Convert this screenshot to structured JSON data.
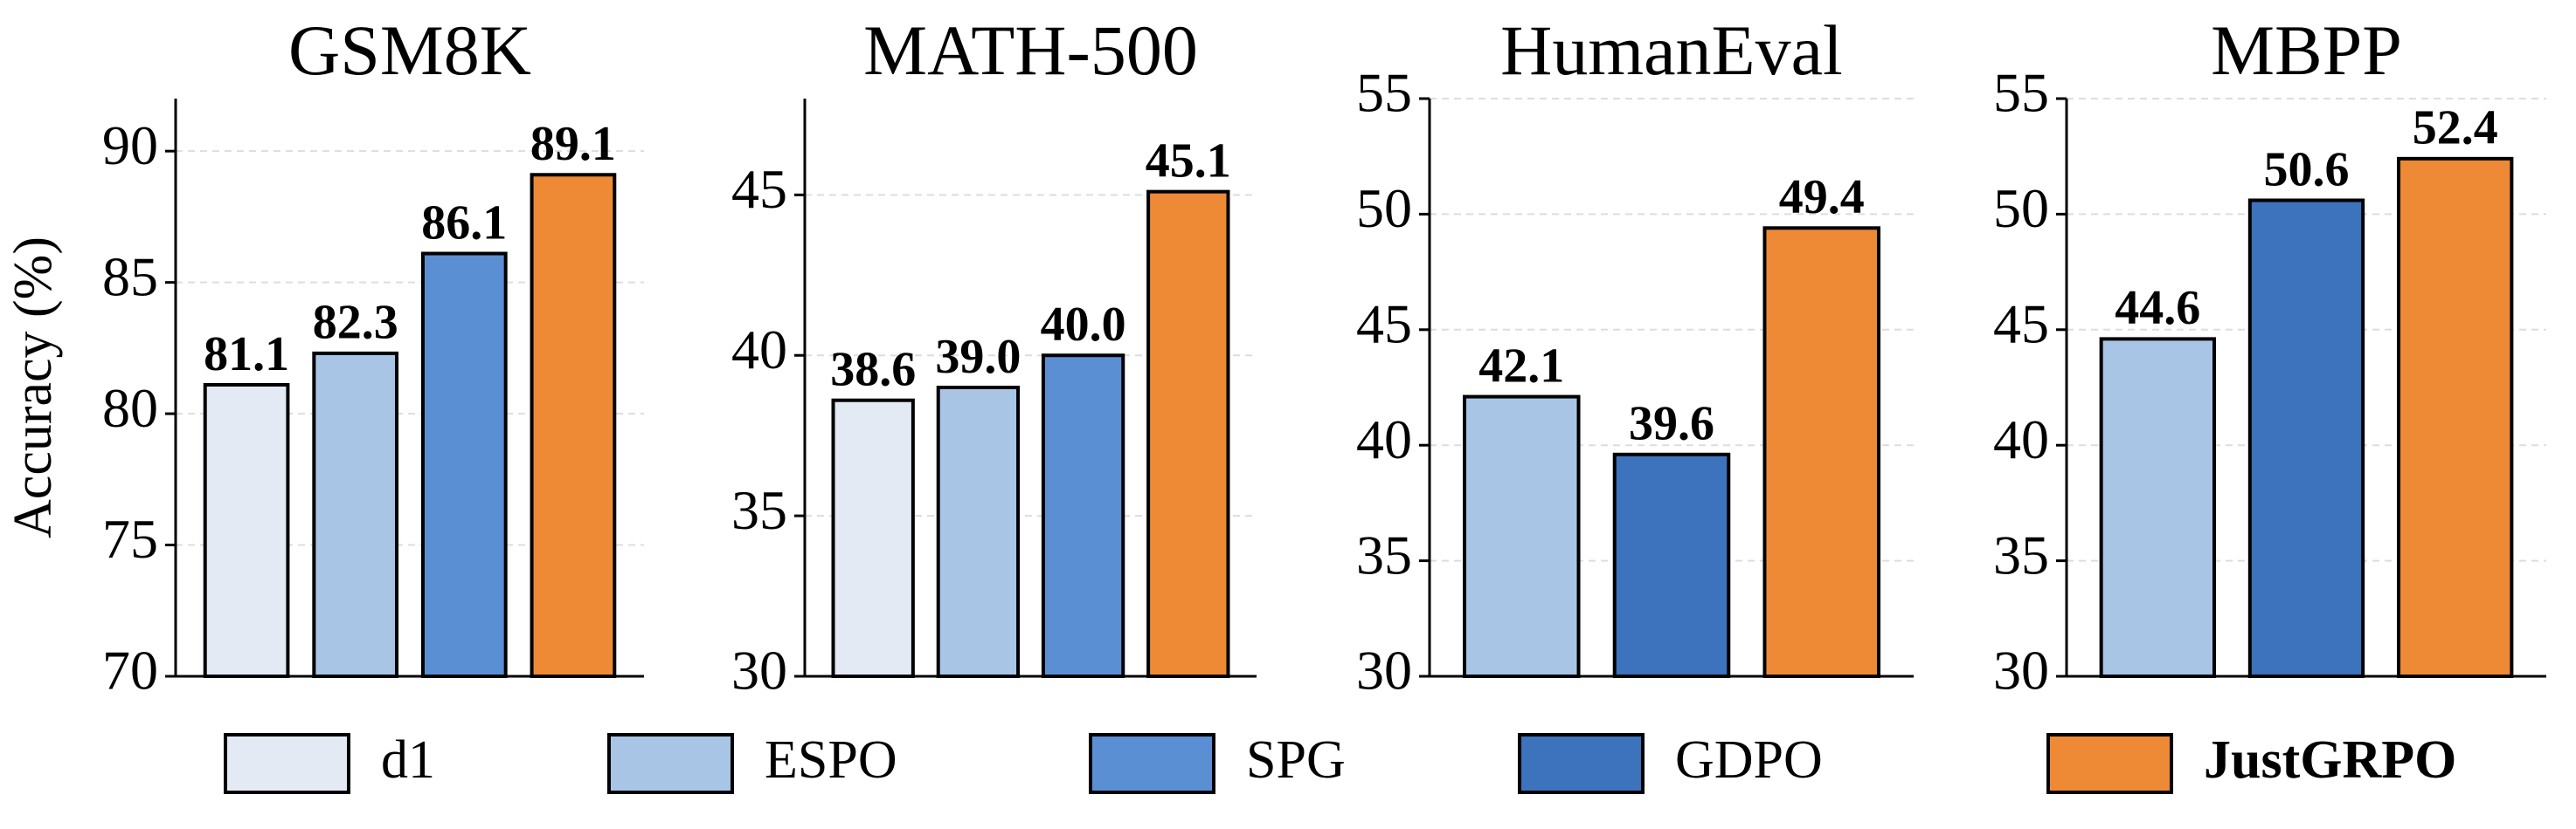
{
  "chart_data": [
    {
      "type": "bar",
      "title": "GSM8K",
      "ylabel": "Accuracy (%)",
      "values": [
        81.1,
        82.3,
        86.1,
        89.1
      ],
      "value_labels": [
        "81.1",
        "82.3",
        "86.1",
        "89.1"
      ],
      "colors": [
        "#e3eaf3",
        "#a8c5e6",
        "#5b8fd4",
        "#ee8a35"
      ],
      "ylim": [
        70,
        92
      ],
      "yticks": [
        70,
        75,
        80,
        85,
        90
      ],
      "grid": true
    },
    {
      "type": "bar",
      "title": "MATH-500",
      "values": [
        38.6,
        39.0,
        40.0,
        45.1
      ],
      "value_labels": [
        "38.6",
        "39.0",
        "40.0",
        "45.1"
      ],
      "colors": [
        "#e3eaf3",
        "#a8c5e6",
        "#5b8fd4",
        "#ee8a35"
      ],
      "ylim": [
        30,
        48
      ],
      "yticks": [
        30,
        35,
        40,
        45
      ],
      "grid": true
    },
    {
      "type": "bar",
      "title": "HumanEval",
      "values": [
        42.1,
        39.6,
        49.4
      ],
      "value_labels": [
        "42.1",
        "39.6",
        "49.4"
      ],
      "colors": [
        "#a8c5e6",
        "#3d72bd",
        "#ee8a35"
      ],
      "ylim": [
        30,
        55
      ],
      "yticks": [
        30,
        35,
        40,
        45,
        50,
        55
      ],
      "grid": true
    },
    {
      "type": "bar",
      "title": "MBPP",
      "values": [
        44.6,
        50.6,
        52.4
      ],
      "value_labels": [
        "44.6",
        "50.6",
        "52.4"
      ],
      "colors": [
        "#a8c5e6",
        "#3d72bd",
        "#ee8a35"
      ],
      "ylim": [
        30,
        55
      ],
      "yticks": [
        30,
        35,
        40,
        45,
        50,
        55
      ],
      "grid": true
    }
  ],
  "legend": [
    {
      "name": "d1",
      "color": "#e3eaf3"
    },
    {
      "name": "ESPO",
      "color": "#a8c5e6"
    },
    {
      "name": "SPG",
      "color": "#5b8fd4"
    },
    {
      "name": "GDPO",
      "color": "#3d72bd"
    },
    {
      "name": "JustGRPO",
      "color": "#ee8a35",
      "bold": true
    }
  ]
}
